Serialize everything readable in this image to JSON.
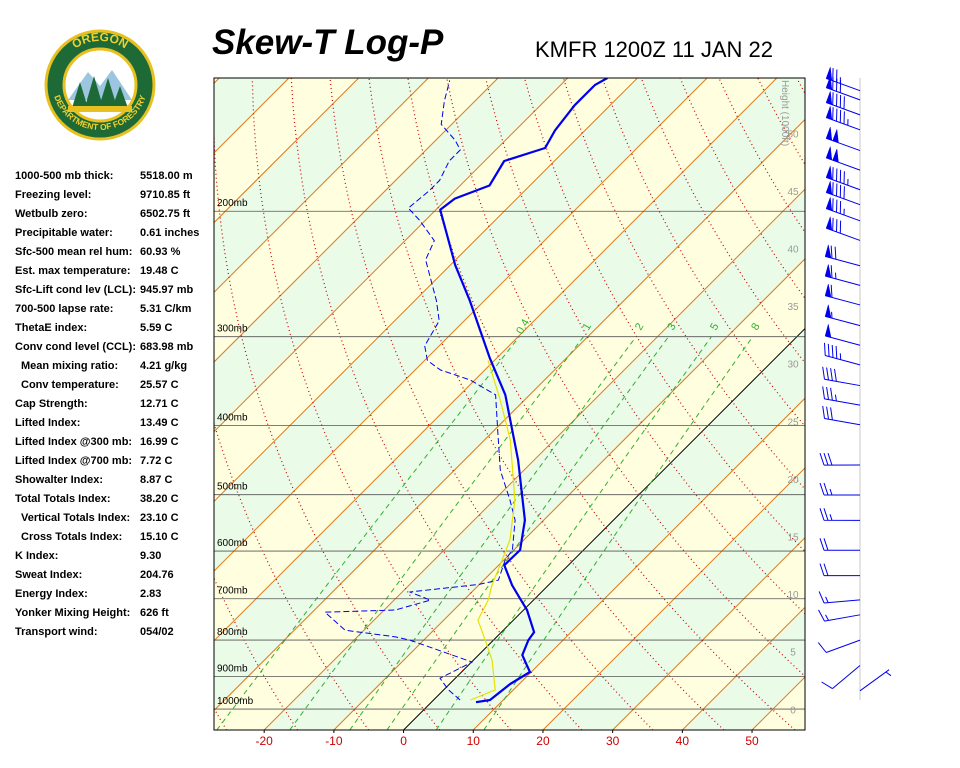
{
  "logo": {
    "top": "OREGON",
    "bottom": "DEPARTMENT OF FORESTRY"
  },
  "stats": [
    [
      "1000-500 mb thick:",
      "5518.00 m"
    ],
    [
      "Freezing level:",
      "9710.85 ft"
    ],
    [
      "Wetbulb zero:",
      "6502.75 ft"
    ],
    [
      "Precipitable water:",
      "0.61 inches"
    ],
    [
      "Sfc-500 mean rel hum:",
      "60.93 %"
    ],
    [
      "Est. max temperature:",
      "19.48 C"
    ],
    [
      "Sfc-Lift cond lev (LCL):",
      "945.97 mb"
    ],
    [
      "700-500 lapse rate:",
      "5.31 C/km"
    ],
    [
      "ThetaE index:",
      "5.59 C"
    ],
    [
      "Conv cond level (CCL):",
      "683.98 mb"
    ],
    [
      "Mean mixing ratio:",
      "4.21 g/kg"
    ],
    [
      "Conv temperature:",
      "25.57 C"
    ],
    [
      "Cap Strength:",
      "12.71 C"
    ],
    [
      "Lifted Index:",
      "13.49 C"
    ],
    [
      "Lifted Index @300 mb:",
      "16.99 C"
    ],
    [
      "Lifted Index @700 mb:",
      "7.72 C"
    ],
    [
      "Showalter Index:",
      "8.87 C"
    ],
    [
      "Total Totals Index:",
      "38.20 C"
    ],
    [
      "Vertical Totals Index:",
      "23.10 C"
    ],
    [
      "Cross Totals Index:",
      "15.10 C"
    ],
    [
      "K Index:",
      "9.30"
    ],
    [
      "Sweat Index:",
      "204.76"
    ],
    [
      "Energy Index:",
      "2.83"
    ],
    [
      "Yonker Mixing Height:",
      "626 ft"
    ],
    [
      "Transport wind:",
      "054/02"
    ]
  ],
  "chart_data": {
    "type": "skew-t",
    "title": "Skew-T Log-P",
    "subtitle": "KMFR 1200Z 11 JAN 22",
    "xlim": [
      -27.2,
      57.6
    ],
    "xticks": [
      -20,
      -10,
      0,
      10,
      20,
      30,
      40,
      50
    ],
    "ylim": [
      1070,
      130
    ],
    "log_y": true,
    "yticks": [
      {
        "value": 200,
        "label": "200mb"
      },
      {
        "value": 300,
        "label": "300mb"
      },
      {
        "value": 400,
        "label": "400mb"
      },
      {
        "value": 500,
        "label": "500mb"
      },
      {
        "value": 600,
        "label": "600mb"
      },
      {
        "value": 700,
        "label": "700mb"
      },
      {
        "value": 800,
        "label": "800mb"
      },
      {
        "value": 900,
        "label": "900mb"
      },
      {
        "value": 1000,
        "label": "1000mb"
      }
    ],
    "y2label": "Height (1000ft)",
    "y2lim": [
      -1.8,
      54.8
    ],
    "y2ticks": [
      0,
      5,
      10,
      15,
      20,
      25,
      30,
      35,
      40,
      45,
      50
    ],
    "mixing_ratios": [
      0.4,
      1,
      2,
      3,
      5,
      8
    ],
    "series": [
      {
        "color": "#0000ee",
        "style": "thick",
        "pressure": [
          978,
          971,
          922,
          887,
          840,
          800,
          780,
          726,
          699,
          670,
          628,
          598,
          543,
          447,
          362,
          322,
          267,
          238,
          199,
          192,
          184,
          170,
          163,
          154,
          142,
          133,
          130
        ],
        "values": [
          6.4,
          8.1,
          8.7,
          9.8,
          6.3,
          5.0,
          4.7,
          0.5,
          -2.2,
          -5.2,
          -9.2,
          -9.1,
          -12.7,
          -22.3,
          -33.5,
          -40.9,
          -52.1,
          -59.3,
          -69.4,
          -68.9,
          -65.8,
          -67.2,
          -63.2,
          -64.3,
          -65.1,
          -65.1,
          -64.3
        ]
      },
      {
        "color": "#0000ee",
        "style": "dashed",
        "pressure": [
          971,
          940,
          905,
          859,
          800,
          792,
          775,
          731,
          726,
          703,
          685,
          668,
          659,
          618,
          598,
          543,
          509,
          462,
          406,
          362,
          345,
          334,
          324,
          309,
          285,
          267,
          234,
          220,
          206,
          198,
          187,
          181,
          170,
          164,
          159,
          151,
          140,
          131
        ],
        "values": [
          3.8,
          0.7,
          -2.2,
          0.1,
          -12.0,
          -14.5,
          -22.7,
          -28.2,
          -18.4,
          -14.8,
          -18.9,
          -10.0,
          -7.9,
          -9.8,
          -10.2,
          -14.1,
          -17.7,
          -23.4,
          -29.5,
          -34.9,
          -40.7,
          -46.4,
          -49.6,
          -52.1,
          -53.6,
          -56.9,
          -64.3,
          -65.8,
          -70.8,
          -74.2,
          -73.7,
          -73.7,
          -75.1,
          -75.1,
          -77.2,
          -81.5,
          -84.4,
          -86.6
        ]
      },
      {
        "color": "#e8e000",
        "style": "thin",
        "pressure": [
          971,
          940,
          854,
          800,
          750,
          703,
          670,
          628,
          579,
          509,
          419,
          368,
          324
        ],
        "values": [
          5.3,
          7.4,
          2.7,
          -1.2,
          -5.1,
          -6.5,
          -8.1,
          -9.8,
          -12.0,
          -17.0,
          -26.3,
          -33.5,
          -40.9
        ]
      }
    ],
    "winds": {
      "color": "#0000ee",
      "height": [
        53.7,
        52.9,
        51.6,
        50.3,
        48.5,
        46.8,
        45.1,
        43.8,
        42.4,
        40.7,
        38.5,
        36.8,
        35.1,
        33.3,
        31.6,
        29.9,
        28.1,
        26.4,
        24.7,
        21.2,
        18.6,
        16.4,
        13.8,
        11.6,
        9.5,
        8.2,
        6.0,
        3.8,
        1.6
      ],
      "direction": [
        290,
        290,
        290,
        290,
        290,
        290,
        290,
        290,
        290,
        290,
        285,
        285,
        285,
        285,
        285,
        285,
        280,
        280,
        280,
        270,
        270,
        270,
        270,
        270,
        265,
        260,
        250,
        230,
        54
      ],
      "speed": [
        75,
        80,
        90,
        95,
        100,
        100,
        95,
        90,
        85,
        80,
        70,
        65,
        60,
        55,
        50,
        45,
        40,
        35,
        30,
        30,
        25,
        25,
        20,
        20,
        15,
        15,
        10,
        10,
        5
      ]
    }
  }
}
